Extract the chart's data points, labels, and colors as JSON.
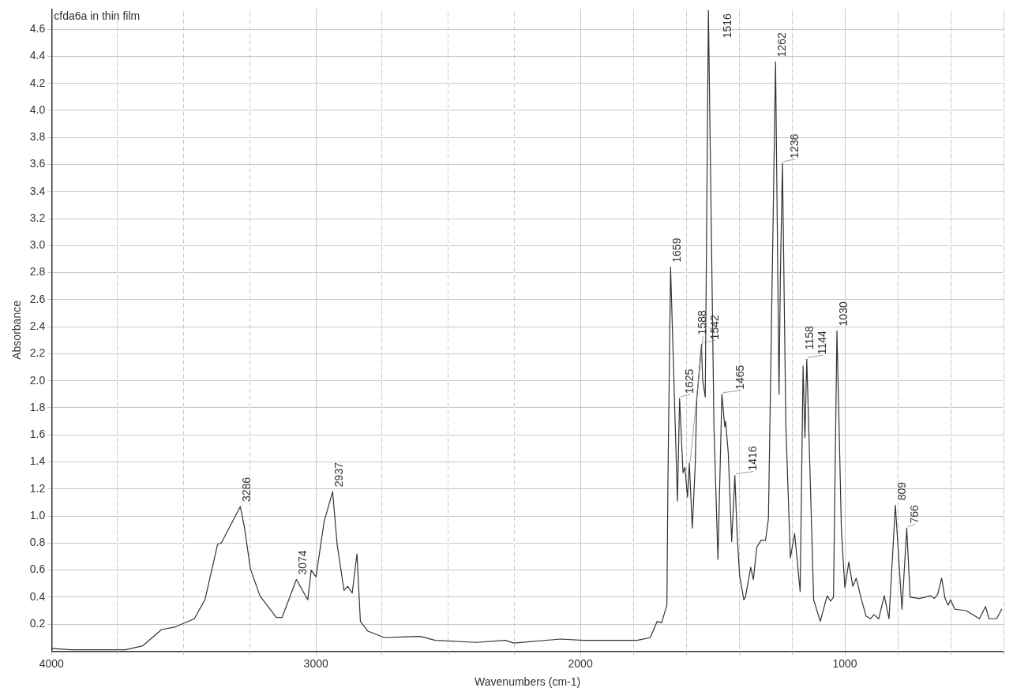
{
  "chart_data": {
    "type": "line",
    "title": "cfda6a in thin film",
    "xlabel": "Wavenumbers (cm-1)",
    "ylabel": "Absorbance",
    "xlim": [
      4000,
      400
    ],
    "ylim": [
      0,
      4.75
    ],
    "xticks": [
      4000,
      {
        "value": 3750,
        "label": null
      },
      {
        "value": 3500,
        "label": null
      },
      {
        "value": 3250,
        "label": null
      },
      3000,
      {
        "value": 2750,
        "label": null
      },
      {
        "value": 2500,
        "label": null
      },
      {
        "value": 2250,
        "label": null
      },
      2000,
      {
        "value": 1800,
        "label": null
      },
      {
        "value": 1600,
        "label": null
      },
      {
        "value": 1400,
        "label": null
      },
      {
        "value": 1200,
        "label": null
      },
      1000,
      {
        "value": 800,
        "label": null
      },
      {
        "value": 600,
        "label": null
      },
      {
        "value": 400,
        "label": null
      }
    ],
    "yticks": [
      0.2,
      0.4,
      0.6,
      0.8,
      {
        "value": 1,
        "label": "1.0"
      },
      1.2,
      1.4,
      1.6,
      1.8,
      {
        "value": 2,
        "label": "2.0"
      },
      2.2,
      2.4,
      2.6,
      2.8,
      {
        "value": 3,
        "label": "3.0"
      },
      3.2,
      3.4,
      3.6,
      3.8,
      {
        "value": 4,
        "label": "4.0"
      },
      4.2,
      4.4,
      4.6
    ],
    "grid": true,
    "legend": false,
    "marker": "none",
    "line_style": "solid",
    "x": [
      4000,
      3925,
      3721,
      3655,
      3584,
      3531,
      3460,
      3420,
      3372,
      3358,
      3286,
      3270,
      3248,
      3212,
      3150,
      3128,
      3074,
      3031,
      3018,
      3000,
      2969,
      2937,
      2920,
      2894,
      2880,
      2863,
      2845,
      2832,
      2805,
      2740,
      2606,
      2549,
      2394,
      2283,
      2252,
      2075,
      1990,
      1786,
      1736,
      1710,
      1693,
      1673,
      1669,
      1659,
      1633,
      1625,
      1612,
      1605,
      1595,
      1588,
      1577,
      1566,
      1560,
      1542,
      1538,
      1528,
      1516,
      1495,
      1480,
      1465,
      1454,
      1451,
      1441,
      1428,
      1416,
      1408,
      1398,
      1382,
      1376,
      1356,
      1346,
      1333,
      1317,
      1300,
      1289,
      1262,
      1249,
      1244,
      1236,
      1223,
      1206,
      1190,
      1185,
      1169,
      1158,
      1151,
      1144,
      1118,
      1093,
      1067,
      1054,
      1043,
      1030,
      1013,
      1000,
      985,
      970,
      957,
      937,
      920,
      903,
      890,
      872,
      851,
      833,
      809,
      784,
      766,
      753,
      719,
      675,
      662,
      649,
      634,
      621,
      610,
      600,
      584,
      541,
      491,
      468,
      455,
      426,
      407
    ],
    "series": [
      {
        "color": "#333333",
        "values": [
          0.02,
          0.01,
          0.01,
          0.04,
          0.16,
          0.18,
          0.24,
          0.38,
          0.79,
          0.8,
          1.07,
          0.91,
          0.61,
          0.41,
          0.25,
          0.25,
          0.53,
          0.38,
          0.6,
          0.55,
          0.96,
          1.18,
          0.79,
          0.45,
          0.48,
          0.43,
          0.72,
          0.22,
          0.15,
          0.1,
          0.11,
          0.08,
          0.065,
          0.08,
          0.06,
          0.09,
          0.08,
          0.08,
          0.1,
          0.22,
          0.21,
          0.34,
          1.27,
          2.84,
          1.11,
          1.87,
          1.32,
          1.36,
          1.14,
          1.39,
          0.91,
          1.37,
          1.86,
          2.27,
          2.01,
          1.88,
          4.74,
          1.66,
          0.68,
          1.9,
          1.66,
          1.7,
          1.47,
          0.81,
          1.3,
          0.89,
          0.56,
          0.38,
          0.4,
          0.62,
          0.53,
          0.77,
          0.82,
          0.82,
          0.98,
          4.36,
          1.9,
          2.75,
          3.61,
          1.66,
          0.69,
          0.87,
          0.77,
          0.44,
          2.11,
          1.58,
          2.16,
          0.38,
          0.22,
          0.41,
          0.37,
          0.4,
          2.37,
          0.89,
          0.47,
          0.66,
          0.48,
          0.54,
          0.38,
          0.26,
          0.24,
          0.27,
          0.24,
          0.41,
          0.24,
          1.08,
          0.31,
          0.91,
          0.4,
          0.39,
          0.41,
          0.39,
          0.42,
          0.54,
          0.39,
          0.34,
          0.38,
          0.31,
          0.3,
          0.24,
          0.33,
          0.24,
          0.24,
          0.31
        ]
      }
    ],
    "annotations": [
      {
        "text": "3286",
        "x": 3286,
        "y": 1.07
      },
      {
        "text": "3074",
        "x": 3074,
        "y": 0.53
      },
      {
        "text": "2937",
        "x": 2937,
        "y": 1.18
      },
      {
        "text": "1659",
        "x": 1659,
        "y": 2.84
      },
      {
        "text": "1625",
        "x": 1625,
        "y": 1.87
      },
      {
        "text": "1588",
        "x": 1588,
        "y": 1.39
      },
      {
        "text": "1542",
        "x": 1542,
        "y": 2.27
      },
      {
        "text": "1516",
        "x": 1516,
        "y": 4.74
      },
      {
        "text": "1465",
        "x": 1465,
        "y": 1.9
      },
      {
        "text": "1416",
        "x": 1416,
        "y": 1.3
      },
      {
        "text": "1262",
        "x": 1262,
        "y": 4.36
      },
      {
        "text": "1236",
        "x": 1236,
        "y": 3.61
      },
      {
        "text": "1158",
        "x": 1158,
        "y": 2.11
      },
      {
        "text": "1144",
        "x": 1144,
        "y": 2.16
      },
      {
        "text": "1030",
        "x": 1030,
        "y": 2.37
      },
      {
        "text": "809",
        "x": 809,
        "y": 1.08
      },
      {
        "text": "766",
        "x": 766,
        "y": 0.91
      }
    ]
  }
}
